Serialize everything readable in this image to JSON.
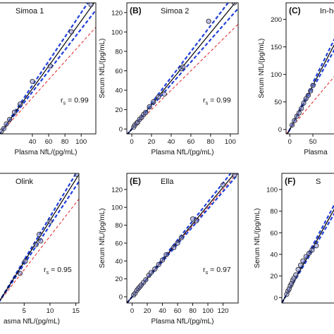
{
  "chart_data": [
    {
      "type": "scatter",
      "label": "",
      "title": "Simoa 1",
      "xlabel": "Plasma NfL/(pg/mL)",
      "ylabel": "",
      "xlim": [
        -5,
        118
      ],
      "ylim": [
        0,
        145
      ],
      "xticks": [
        40,
        60,
        80,
        100
      ],
      "yticks": [],
      "x": [
        2,
        5,
        8,
        12,
        18,
        25,
        40,
        62,
        88,
        112
      ],
      "y": [
        3,
        6,
        11,
        16,
        24,
        33,
        58,
        75,
        113,
        143
      ],
      "fit_slope": 1.25,
      "ci_slope_low": 1.16,
      "ci_slope_high": 1.34,
      "identity_slope": 1.0,
      "rs_value": "0.99"
    },
    {
      "type": "scatter",
      "label": "(B)",
      "title": "Simoa 2",
      "xlabel": "Plasma NfL/(pg/mL)",
      "ylabel": "Serum NfL/(pg/mL)",
      "xlim": [
        -5,
        108
      ],
      "ylim": [
        -5,
        130
      ],
      "xticks": [
        0,
        20,
        40,
        60,
        80,
        100
      ],
      "yticks": [
        0,
        20,
        40,
        60,
        80,
        100,
        120
      ],
      "x": [
        2,
        3,
        5,
        6,
        8,
        10,
        12,
        14,
        18,
        22,
        27,
        33,
        50,
        52,
        78,
        104
      ],
      "y": [
        2,
        4,
        6,
        7,
        10,
        12,
        15,
        17,
        23,
        28,
        33,
        36,
        62,
        64,
        111,
        130
      ],
      "fit_slope": 1.24,
      "ci_slope_low": 1.15,
      "ci_slope_high": 1.33,
      "identity_slope": 1.0,
      "rs_value": "0.99"
    },
    {
      "type": "scatter",
      "label": "(C)",
      "title": "In-ho",
      "xlabel": "Plasma",
      "ylabel": "Serum NfL/(pg/mL)",
      "xlim": [
        -8,
        120
      ],
      "ylim": [
        -8,
        230
      ],
      "xticks": [
        0,
        50
      ],
      "yticks": [
        0,
        50,
        100,
        150,
        200
      ],
      "x": [
        5,
        10,
        15,
        20,
        25,
        30,
        35,
        40,
        45,
        50
      ],
      "y": [
        8,
        16,
        24,
        30,
        38,
        48,
        56,
        62,
        70,
        80
      ],
      "fit_slope": 1.6,
      "ci_slope_low": 1.5,
      "ci_slope_high": 1.7,
      "identity_slope": 1.0,
      "rs_value": ""
    },
    {
      "type": "scatter",
      "label": "",
      "title": "Olink",
      "xlabel": "asma NfL/(pg/mL)",
      "ylabel": "",
      "xlim": [
        -0.5,
        15.6
      ],
      "ylim": [
        0,
        14
      ],
      "xticks": [
        5,
        10,
        15
      ],
      "yticks": [],
      "x": [
        4.2,
        5.2,
        7.3,
        7.9,
        8.2,
        10.0,
        15.2
      ],
      "y": [
        3.2,
        4.5,
        6.3,
        7.4,
        6.7,
        8.8,
        13.9
      ],
      "fit_slope": 0.89,
      "ci_slope_low": 0.84,
      "ci_slope_high": 0.93,
      "identity_slope": 0.72,
      "rs_value": "0.95"
    },
    {
      "type": "scatter",
      "label": "(E)",
      "title": "Ella",
      "xlabel": "Plasma NfL/(pg/mL)",
      "ylabel": "Serum NfL/(pg/mL)",
      "xlim": [
        -7,
        140
      ],
      "ylim": [
        -7,
        138
      ],
      "xticks": [
        0,
        20,
        40,
        60,
        80,
        100,
        120
      ],
      "yticks": [
        0,
        20,
        40,
        60,
        80,
        100,
        120
      ],
      "x": [
        2,
        4,
        6,
        8,
        10,
        12,
        15,
        18,
        22,
        25,
        30,
        35,
        40,
        45,
        55,
        60,
        65,
        80,
        85,
        120,
        135
      ],
      "y": [
        2,
        4,
        7,
        9,
        11,
        13,
        16,
        19,
        24,
        27,
        31,
        36,
        41,
        47,
        55,
        60,
        66,
        87,
        85,
        125,
        136
      ],
      "fit_slope": 1.02,
      "ci_slope_low": 0.98,
      "ci_slope_high": 1.06,
      "identity_slope": 1.0,
      "rs_value": "0.97"
    },
    {
      "type": "scatter",
      "label": "(F)",
      "title": "S",
      "xlabel": "",
      "ylabel": "Serum NfL/(pg/mL)",
      "xlim": [
        -5,
        100
      ],
      "ylim": [
        -5,
        115
      ],
      "xticks": [],
      "yticks": [
        0,
        20,
        40,
        60,
        80,
        100
      ],
      "x": [
        3,
        5,
        7,
        9,
        11,
        13,
        15,
        18,
        22,
        26,
        30,
        35,
        40,
        45,
        52
      ],
      "y": [
        3,
        6,
        8,
        11,
        13,
        16,
        18,
        21,
        26,
        30,
        34,
        38,
        41,
        44,
        48
      ],
      "fit_slope": 1.0,
      "ci_slope_low": 0.95,
      "ci_slope_high": 1.05,
      "identity_slope": 1.0,
      "rs_value": ""
    }
  ],
  "colors": {
    "fit": "#000000",
    "ci": "#1f3fd8",
    "identity": "#e02020",
    "point_fill": "#8a8fd0",
    "point_stroke": "#222222"
  }
}
